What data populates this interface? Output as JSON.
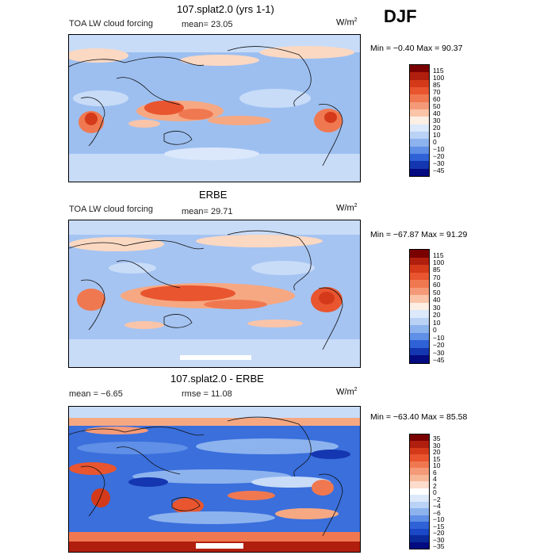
{
  "season": "DJF",
  "panels": [
    {
      "id": "model",
      "title": "107.splat2.0 (yrs 1-1)",
      "variable": "TOA LW cloud forcing",
      "stat_text": "mean=  23.05",
      "mean": 23.05,
      "units_base": "W/m",
      "units_exp": "2",
      "minmax_text": "Min =  −0.40 Max =  90.37",
      "min": -0.4,
      "max": 90.37,
      "levels": [
        "115",
        "100",
        "85",
        "70",
        "60",
        "50",
        "40",
        "30",
        "20",
        "10",
        "0",
        "−10",
        "−20",
        "−30",
        "−45"
      ]
    },
    {
      "id": "obs",
      "title": "ERBE",
      "variable": "TOA LW cloud forcing",
      "stat_text": "mean=  29.71",
      "mean": 29.71,
      "units_base": "W/m",
      "units_exp": "2",
      "minmax_text": "Min = −67.87 Max =  91.29",
      "min": -67.87,
      "max": 91.29,
      "levels": [
        "115",
        "100",
        "85",
        "70",
        "60",
        "50",
        "40",
        "30",
        "20",
        "10",
        "0",
        "−10",
        "−20",
        "−30",
        "−45"
      ]
    },
    {
      "id": "diff",
      "title": "107.splat2.0 - ERBE",
      "stat_text": "mean =   −6.65",
      "mean": -6.65,
      "rmse_text": "rmse =  11.08",
      "rmse": 11.08,
      "units_base": "W/m",
      "units_exp": "2",
      "minmax_text": "Min = −63.40 Max =  85.58",
      "min": -63.4,
      "max": 85.58,
      "levels": [
        "35",
        "30",
        "20",
        "15",
        "10",
        "6",
        "4",
        "2",
        "0",
        "−2",
        "−4",
        "−6",
        "−10",
        "−15",
        "−20",
        "−30",
        "−35"
      ]
    }
  ],
  "chart_data": [
    {
      "type": "heatmap",
      "title": "107.splat2.0 (yrs 1-1)",
      "subtitle": "TOA LW cloud forcing",
      "units": "W/m^2",
      "mean": 23.05,
      "min": -0.4,
      "max": 90.37,
      "contour_levels": [
        115,
        100,
        85,
        70,
        60,
        50,
        40,
        30,
        20,
        10,
        0,
        -10,
        -20,
        -30,
        -45
      ]
    },
    {
      "type": "heatmap",
      "title": "ERBE",
      "subtitle": "TOA LW cloud forcing",
      "units": "W/m^2",
      "mean": 29.71,
      "min": -67.87,
      "max": 91.29,
      "contour_levels": [
        115,
        100,
        85,
        70,
        60,
        50,
        40,
        30,
        20,
        10,
        0,
        -10,
        -20,
        -30,
        -45
      ]
    },
    {
      "type": "heatmap",
      "title": "107.splat2.0 - ERBE",
      "units": "W/m^2",
      "mean": -6.65,
      "rmse": 11.08,
      "min": -63.4,
      "max": 85.58,
      "contour_levels": [
        35,
        30,
        20,
        15,
        10,
        6,
        4,
        2,
        0,
        -2,
        -4,
        -6,
        -10,
        -15,
        -20,
        -30,
        -35
      ]
    }
  ],
  "colors": {
    "scale15": [
      "#7a0000",
      "#b01e0e",
      "#d43a1a",
      "#e8552f",
      "#f07850",
      "#f59a78",
      "#fac4a8",
      "#fdefe4",
      "#dce9fb",
      "#b9d2f6",
      "#8db3ee",
      "#5f8fe6",
      "#2f62d6",
      "#1436b0",
      "#040a80"
    ],
    "scale17": [
      "#7a0000",
      "#b01e0e",
      "#d43a1a",
      "#e8552f",
      "#f07850",
      "#f59a78",
      "#f8b898",
      "#fcdccc",
      "#ffffff",
      "#dce9fb",
      "#b9d2f6",
      "#8db3ee",
      "#5f8fe6",
      "#2f62d6",
      "#1a48c6",
      "#0a2a9c",
      "#040a80"
    ]
  }
}
